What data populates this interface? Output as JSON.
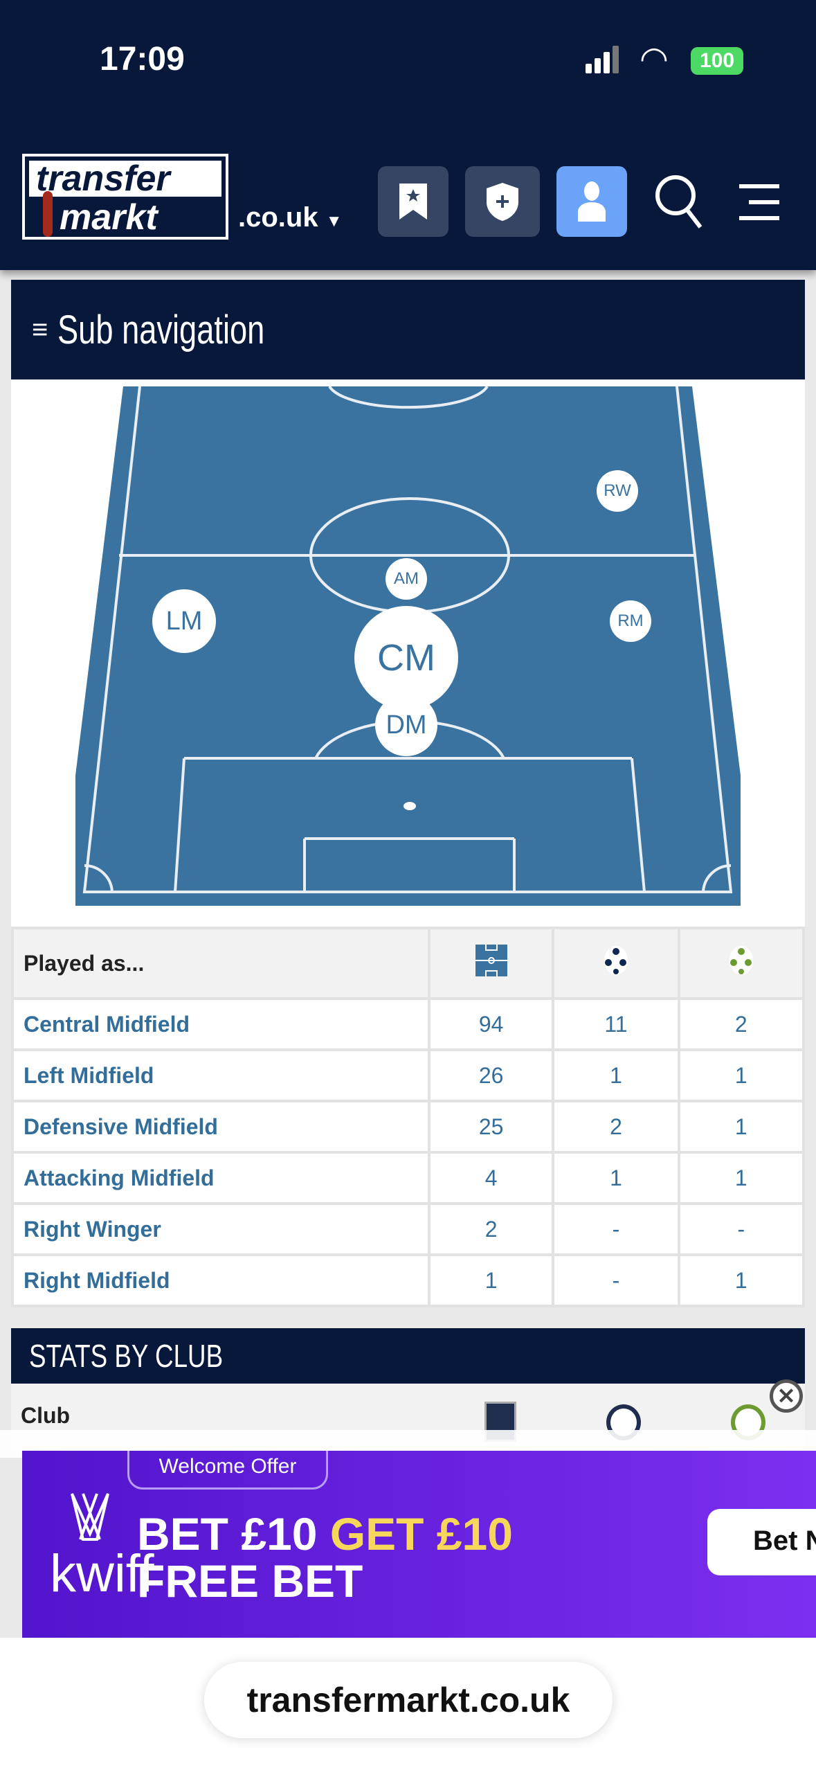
{
  "status": {
    "time": "17:09",
    "battery": "100"
  },
  "header": {
    "logo_top": "transfer",
    "logo_bottom": "markt",
    "tld": ".co.uk",
    "icons": [
      "bookmark-icon",
      "shield-plus-icon",
      "user-icon",
      "search-icon",
      "menu-icon"
    ]
  },
  "subnav": {
    "label": "Sub navigation"
  },
  "pitch": {
    "positions": [
      {
        "label": "RW",
        "size": "small"
      },
      {
        "label": "AM",
        "size": "small"
      },
      {
        "label": "LM",
        "size": "medium"
      },
      {
        "label": "RM",
        "size": "small"
      },
      {
        "label": "CM",
        "size": "large"
      },
      {
        "label": "DM",
        "size": "medium"
      }
    ]
  },
  "played_as": {
    "header": "Played as...",
    "column_icons": [
      "pitch-appearances-icon",
      "goals-ball-icon",
      "assists-ball-icon"
    ],
    "rows": [
      {
        "position": "Central Midfield",
        "apps": "94",
        "goals": "11",
        "assists": "2"
      },
      {
        "position": "Left Midfield",
        "apps": "26",
        "goals": "1",
        "assists": "1"
      },
      {
        "position": "Defensive Midfield",
        "apps": "25",
        "goals": "2",
        "assists": "1"
      },
      {
        "position": "Attacking Midfield",
        "apps": "4",
        "goals": "1",
        "assists": "1"
      },
      {
        "position": "Right Winger",
        "apps": "2",
        "goals": "-",
        "assists": "-"
      },
      {
        "position": "Right Midfield",
        "apps": "1",
        "goals": "-",
        "assists": "1"
      }
    ]
  },
  "stats_by_club": {
    "title": "STATS BY CLUB",
    "club_header": "Club"
  },
  "ad": {
    "badge": "Welcome Offer",
    "brand": "kwiff",
    "line1_white": "BET £10",
    "line1_yellow": "GET £10",
    "line2": "FREE BET",
    "cta": "Bet N"
  },
  "browser": {
    "url": "transfermarkt.co.uk"
  },
  "colors": {
    "navy": "#07183b",
    "pitch": "#3a73a0",
    "link": "#336e9b",
    "user_button": "#6aa3f8",
    "ad_purple": "#6a22e0",
    "ad_yellow": "#f7d75a"
  }
}
